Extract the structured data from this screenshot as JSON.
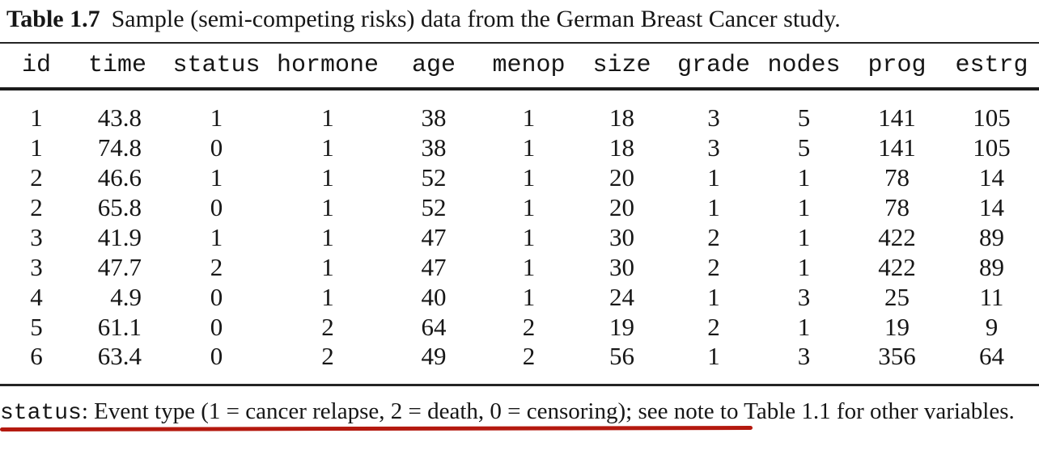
{
  "title": {
    "label": "Table 1.7",
    "caption": "Sample (semi-competing risks) data from the German Breast Cancer study."
  },
  "table": {
    "columns": [
      "id",
      "time",
      "status",
      "hormone",
      "age",
      "menop",
      "size",
      "grade",
      "nodes",
      "prog",
      "estrg"
    ],
    "rows": [
      [
        "1",
        "43.8",
        "1",
        "1",
        "38",
        "1",
        "18",
        "3",
        "5",
        "141",
        "105"
      ],
      [
        "1",
        "74.8",
        "0",
        "1",
        "38",
        "1",
        "18",
        "3",
        "5",
        "141",
        "105"
      ],
      [
        "2",
        "46.6",
        "1",
        "1",
        "52",
        "1",
        "20",
        "1",
        "1",
        "78",
        "14"
      ],
      [
        "2",
        "65.8",
        "0",
        "1",
        "52",
        "1",
        "20",
        "1",
        "1",
        "78",
        "14"
      ],
      [
        "3",
        "41.9",
        "1",
        "1",
        "47",
        "1",
        "30",
        "2",
        "1",
        "422",
        "89"
      ],
      [
        "3",
        "47.7",
        "2",
        "1",
        "47",
        "1",
        "30",
        "2",
        "1",
        "422",
        "89"
      ],
      [
        "4",
        "4.9",
        "0",
        "1",
        "40",
        "1",
        "24",
        "1",
        "3",
        "25",
        "11"
      ],
      [
        "5",
        "61.1",
        "0",
        "2",
        "64",
        "2",
        "19",
        "2",
        "1",
        "19",
        "9"
      ],
      [
        "6",
        "63.4",
        "0",
        "2",
        "49",
        "2",
        "56",
        "1",
        "3",
        "356",
        "64"
      ]
    ]
  },
  "footnote": {
    "term": "status",
    "rest": ": Event type (1 = cancer relapse, 2 = death, 0 = censoring); see note to Table 1.1 for other variables."
  },
  "annotation": {
    "underline_color": "#b4190f"
  }
}
